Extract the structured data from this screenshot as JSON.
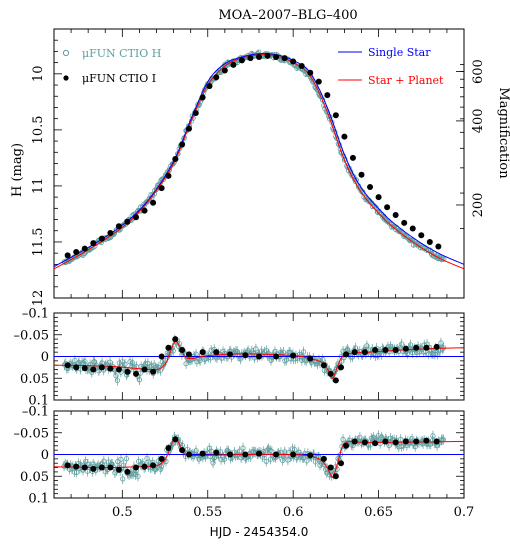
{
  "chart_data": [
    {
      "type": "scatter",
      "title": "MOA–2007–BLG–400",
      "ylabel": "H (mag)",
      "y2label": "Magnification",
      "xlim": [
        0.46,
        0.7
      ],
      "ylim": [
        12.0,
        9.6
      ],
      "yticks": [
        "10",
        "10.5",
        "11",
        "11.5",
        "12"
      ],
      "y2ticks": [
        "600",
        "400",
        "200"
      ],
      "y2tick_mags": [
        9.98,
        10.42,
        11.17
      ],
      "legend_left": [
        {
          "label": "μFUN CTIO H",
          "marker": "open-circle",
          "color": "#5f9ea0"
        },
        {
          "label": "μFUN CTIO I",
          "marker": "filled-circle",
          "color": "#000000"
        }
      ],
      "legend_right": [
        {
          "label": "Single Star",
          "color": "#0000ff"
        },
        {
          "label": "Star + Planet",
          "color": "#ff0000"
        }
      ],
      "model_single_star": {
        "x": [
          0.46,
          0.48,
          0.5,
          0.515,
          0.53,
          0.54,
          0.55,
          0.56,
          0.57,
          0.58,
          0.59,
          0.6,
          0.61,
          0.62,
          0.63,
          0.64,
          0.655,
          0.67,
          0.685,
          0.7
        ],
        "y": [
          11.72,
          11.55,
          11.35,
          11.13,
          10.78,
          10.41,
          10.07,
          9.91,
          9.85,
          9.82,
          9.83,
          9.88,
          9.99,
          10.3,
          10.72,
          11.02,
          11.28,
          11.46,
          11.6,
          11.7
        ]
      },
      "model_star_planet": {
        "x": [
          0.46,
          0.48,
          0.5,
          0.515,
          0.53,
          0.54,
          0.55,
          0.56,
          0.57,
          0.58,
          0.59,
          0.6,
          0.61,
          0.62,
          0.63,
          0.64,
          0.655,
          0.67,
          0.685,
          0.7
        ],
        "y": [
          11.74,
          11.57,
          11.37,
          11.14,
          10.8,
          10.43,
          10.1,
          9.93,
          9.86,
          9.83,
          9.84,
          9.9,
          10.02,
          10.34,
          10.77,
          11.06,
          11.32,
          11.5,
          11.64,
          11.74
        ]
      },
      "ctio_i": {
        "x": [
          0.468,
          0.473,
          0.478,
          0.483,
          0.488,
          0.493,
          0.498,
          0.503,
          0.508,
          0.513,
          0.518,
          0.523,
          0.527,
          0.531,
          0.535,
          0.539,
          0.543,
          0.547,
          0.551,
          0.555,
          0.56,
          0.565,
          0.57,
          0.575,
          0.58,
          0.585,
          0.59,
          0.595,
          0.6,
          0.605,
          0.61,
          0.615,
          0.62,
          0.625,
          0.63,
          0.635,
          0.64,
          0.645,
          0.65,
          0.655,
          0.66,
          0.665,
          0.67,
          0.675,
          0.68,
          0.685
        ],
        "y": [
          11.62,
          11.59,
          11.56,
          11.51,
          11.47,
          11.42,
          11.36,
          11.32,
          11.28,
          11.22,
          11.15,
          11.02,
          10.91,
          10.76,
          10.63,
          10.49,
          10.35,
          10.21,
          10.11,
          10.03,
          9.97,
          9.92,
          9.88,
          9.86,
          9.85,
          9.84,
          9.85,
          9.86,
          9.89,
          9.93,
          9.99,
          10.07,
          10.19,
          10.37,
          10.56,
          10.75,
          10.9,
          11.01,
          11.1,
          11.19,
          11.26,
          11.33,
          11.38,
          11.44,
          11.5,
          11.54
        ]
      }
    },
    {
      "type": "scatter",
      "xlim": [
        0.46,
        0.7
      ],
      "ylim": [
        0.1,
        -0.1
      ],
      "yticks": [
        "–0.1",
        "–0.05",
        "0",
        "0.05",
        "0.1"
      ],
      "ctio_i": {
        "x": [
          0.468,
          0.473,
          0.478,
          0.483,
          0.488,
          0.493,
          0.498,
          0.503,
          0.508,
          0.513,
          0.518,
          0.523,
          0.527,
          0.531,
          0.535,
          0.539,
          0.547,
          0.555,
          0.563,
          0.572,
          0.58,
          0.59,
          0.6,
          0.61,
          0.618,
          0.622,
          0.625,
          0.628,
          0.631,
          0.636,
          0.642,
          0.648,
          0.654,
          0.66,
          0.666,
          0.672,
          0.678,
          0.684
        ],
        "y": [
          0.02,
          0.025,
          0.027,
          0.03,
          0.025,
          0.028,
          0.03,
          0.035,
          0.04,
          0.03,
          0.035,
          0.0,
          -0.02,
          -0.04,
          -0.015,
          -0.005,
          -0.01,
          -0.01,
          -0.005,
          -0.003,
          0.0,
          0.0,
          -0.002,
          0.005,
          0.02,
          0.04,
          0.055,
          0.025,
          -0.005,
          -0.01,
          -0.01,
          -0.015,
          -0.015,
          -0.015,
          -0.018,
          -0.02,
          -0.02,
          -0.022
        ]
      },
      "model_single_star": {
        "x": [
          0.46,
          0.7
        ],
        "y": [
          0.0,
          0.0
        ]
      },
      "model_star_planet": {
        "x": [
          0.46,
          0.49,
          0.51,
          0.52,
          0.525,
          0.528,
          0.531,
          0.534,
          0.537,
          0.542,
          0.55,
          0.57,
          0.6,
          0.61,
          0.616,
          0.62,
          0.623,
          0.626,
          0.629,
          0.632,
          0.636,
          0.645,
          0.66,
          0.68,
          0.7
        ],
        "y": [
          0.02,
          0.022,
          0.028,
          0.03,
          0.018,
          -0.01,
          -0.035,
          -0.02,
          0.002,
          0.004,
          -0.002,
          -0.006,
          -0.002,
          0.005,
          0.012,
          0.028,
          0.05,
          0.022,
          -0.002,
          -0.006,
          -0.008,
          -0.01,
          -0.014,
          -0.018,
          -0.02
        ]
      }
    },
    {
      "type": "scatter",
      "xlabel": "HJD - 2454354.0",
      "xlim": [
        0.46,
        0.7
      ],
      "xticks": [
        "0.5",
        "0.55",
        "0.6",
        "0.65",
        "0.7"
      ],
      "ylim": [
        0.1,
        -0.1
      ],
      "yticks": [
        "–0.1",
        "–0.05",
        "0",
        "0.05",
        "0.1"
      ],
      "ctio_i": {
        "x": [
          0.468,
          0.473,
          0.478,
          0.483,
          0.488,
          0.493,
          0.498,
          0.503,
          0.508,
          0.513,
          0.518,
          0.523,
          0.527,
          0.531,
          0.535,
          0.539,
          0.547,
          0.555,
          0.563,
          0.572,
          0.58,
          0.59,
          0.6,
          0.61,
          0.618,
          0.622,
          0.625,
          0.628,
          0.631,
          0.636,
          0.642,
          0.648,
          0.654,
          0.66,
          0.666,
          0.672,
          0.678,
          0.684
        ],
        "y": [
          0.025,
          0.028,
          0.03,
          0.033,
          0.03,
          0.03,
          0.035,
          0.04,
          0.03,
          0.028,
          0.025,
          0.01,
          -0.015,
          -0.035,
          -0.01,
          0.0,
          -0.002,
          -0.004,
          0.0,
          0.0,
          -0.002,
          0.0,
          0.0,
          0.002,
          0.01,
          0.03,
          0.05,
          0.02,
          -0.02,
          -0.03,
          -0.028,
          -0.026,
          -0.03,
          -0.028,
          -0.03,
          -0.03,
          -0.032,
          -0.03
        ]
      },
      "model_single_star": {
        "x": [
          0.46,
          0.7
        ],
        "y": [
          0.0,
          0.0
        ]
      },
      "model_star_planet": {
        "x": [
          0.46,
          0.49,
          0.51,
          0.52,
          0.525,
          0.528,
          0.531,
          0.534,
          0.537,
          0.545,
          0.57,
          0.6,
          0.61,
          0.616,
          0.62,
          0.623,
          0.626,
          0.629,
          0.633,
          0.64,
          0.66,
          0.7
        ],
        "y": [
          0.028,
          0.03,
          0.028,
          0.026,
          0.012,
          -0.015,
          -0.04,
          -0.018,
          0.0,
          0.002,
          0.0,
          0.0,
          0.004,
          0.012,
          0.03,
          0.052,
          0.02,
          -0.02,
          -0.03,
          -0.028,
          -0.028,
          -0.03
        ]
      }
    }
  ]
}
